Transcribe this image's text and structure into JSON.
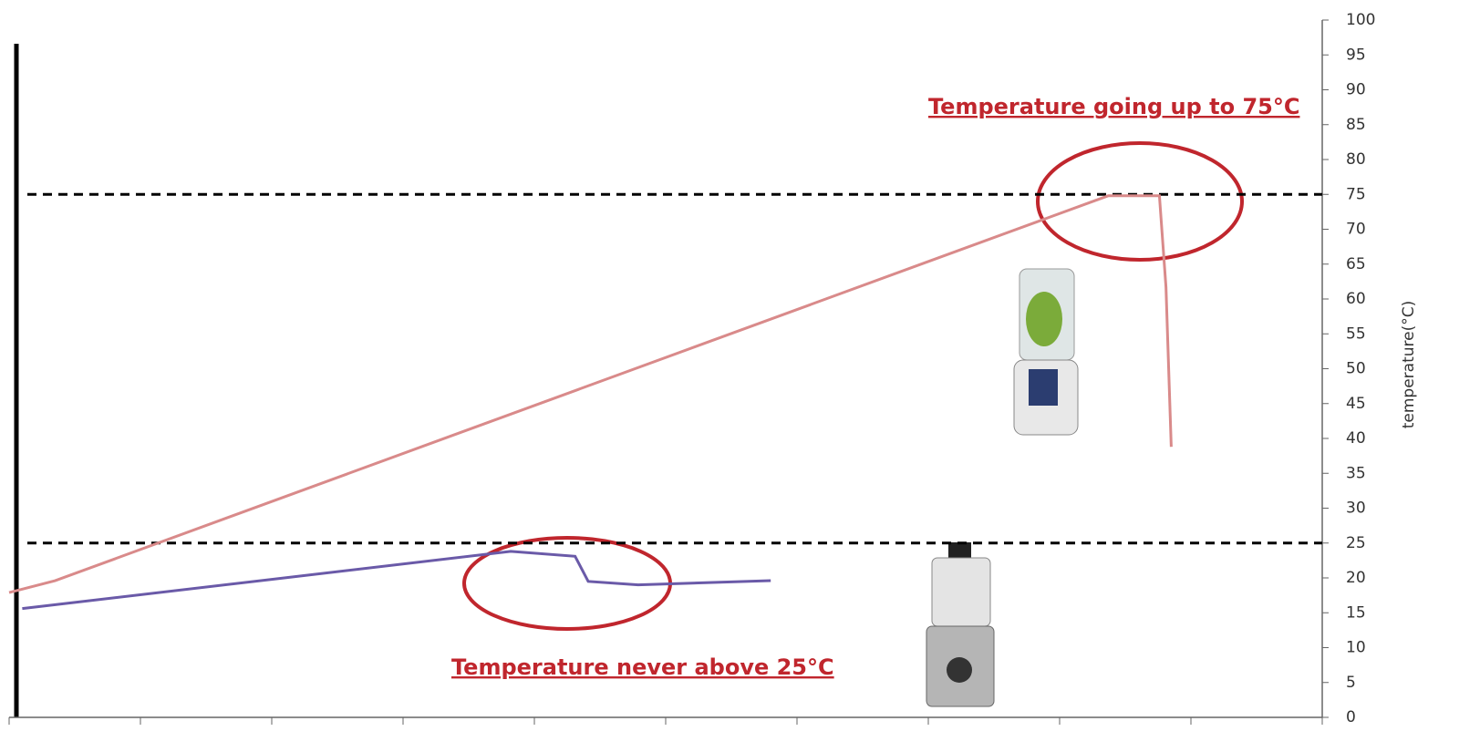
{
  "chart_data": {
    "type": "line",
    "x_axis_ticks": [
      0,
      1,
      2,
      3,
      4,
      5,
      6,
      7,
      8,
      9,
      10
    ],
    "xlim": [
      0,
      10
    ],
    "series": [
      {
        "color": "#d98a8a",
        "x": [
          0,
          0.35,
          8.37,
          8.76,
          8.81,
          8.85
        ],
        "values": [
          17.9,
          19.6,
          74.8,
          74.8,
          61.7,
          38.8
        ]
      },
      {
        "color": "#6a5aa8",
        "x": [
          0.1,
          3.82,
          4.31,
          4.41,
          4.79,
          5.8
        ],
        "values": [
          15.6,
          23.8,
          23.1,
          19.5,
          19,
          19.6
        ]
      }
    ],
    "ylim": [
      0,
      100
    ],
    "yticks": [
      0,
      5,
      10,
      15,
      20,
      25,
      30,
      35,
      40,
      45,
      50,
      55,
      60,
      65,
      70,
      75,
      80,
      85,
      90,
      95,
      100
    ],
    "y_axis_label": "temperature(°C)",
    "reference_lines": [
      75,
      25
    ],
    "annotations": [
      "Temperature going up to 75°C",
      "Temperature never above 25°C"
    ]
  }
}
